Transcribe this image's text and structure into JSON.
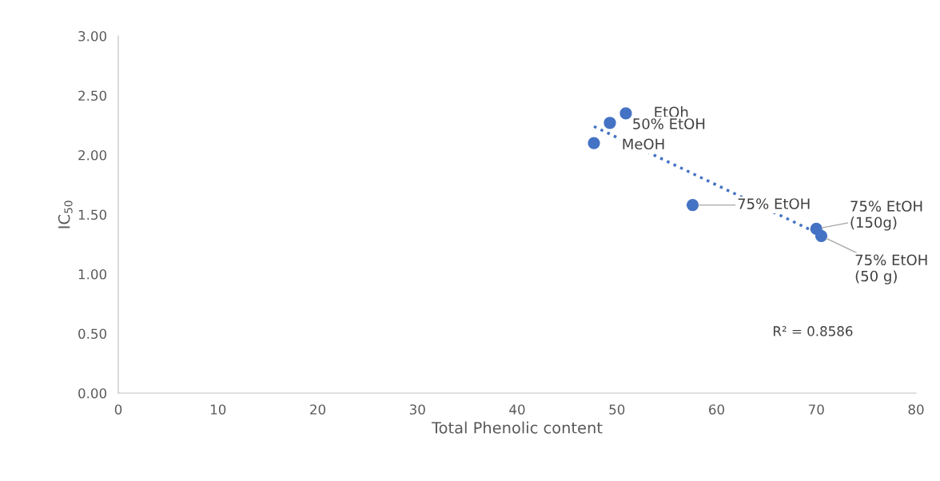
{
  "chart_data": {
    "type": "scatter",
    "xlabel": "Total Phenolic content",
    "ylabel": "IC$_{50}$",
    "xlim": [
      0,
      80
    ],
    "xticks": [
      0,
      10,
      20,
      30,
      40,
      50,
      60,
      70,
      80
    ],
    "ylim": [
      0,
      3
    ],
    "yticks": [
      {
        "value": 0,
        "label": "0.00"
      },
      {
        "value": 0.5,
        "label": "0.50"
      },
      {
        "value": 1,
        "label": "1.00"
      },
      {
        "value": 1.5,
        "label": "1.50"
      },
      {
        "value": 2,
        "label": "2.00"
      },
      {
        "value": 2.5,
        "label": "2.50"
      },
      {
        "value": 3,
        "label": "3.00"
      }
    ],
    "grid": false,
    "legend": false,
    "marker": "circle",
    "series": [
      {
        "color": "#4472c4",
        "x": [
          50.9,
          49.3,
          47.7,
          57.6,
          70.0,
          70.5
        ],
        "values": [
          2.35,
          2.27,
          2.1,
          1.58,
          1.38,
          1.32
        ]
      },
      {
        "type": "line",
        "color": "#4472c4",
        "line_style": "dotted",
        "marker": "none",
        "x": [
          47.7,
          69.7
        ],
        "values": [
          2.24,
          1.36
        ]
      }
    ],
    "annotations": [
      {
        "text": "EtOh",
        "x": 50.9,
        "y": 2.35
      },
      {
        "text": "50% EtOH",
        "x": 49.3,
        "y": 2.27
      },
      {
        "text": "MeOH",
        "x": 47.7,
        "y": 2.1
      },
      {
        "text": "75% EtOH",
        "x": 57.6,
        "y": 1.58
      },
      {
        "text": "75% EtOH\n(150g)",
        "x": 70.0,
        "y": 1.38
      },
      {
        "text": "75% EtOH\n(50 g)",
        "x": 70.5,
        "y": 1.32
      },
      "R² = 0.8586"
    ]
  }
}
